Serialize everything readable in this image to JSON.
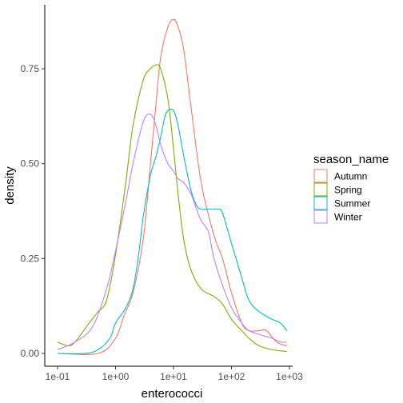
{
  "chart_data": {
    "type": "line",
    "xlabel": "enterococci",
    "ylabel": "density",
    "x_scale": "log10",
    "xlim": [
      0.1,
      1000
    ],
    "ylim": [
      -0.02,
      0.91
    ],
    "x_ticks": [
      {
        "value": 0.1,
        "label": "1e-01"
      },
      {
        "value": 1,
        "label": "1e+00"
      },
      {
        "value": 10,
        "label": "1e+01"
      },
      {
        "value": 100,
        "label": "1e+02"
      },
      {
        "value": 1000,
        "label": "1e+03"
      }
    ],
    "y_ticks": [
      {
        "value": 0.0,
        "label": "0.00"
      },
      {
        "value": 0.25,
        "label": "0.25"
      },
      {
        "value": 0.5,
        "label": "0.50"
      },
      {
        "value": 0.75,
        "label": "0.75"
      }
    ],
    "legend": {
      "title": "season_name",
      "position": "right"
    },
    "grid": false,
    "series": [
      {
        "name": "Autumn",
        "color": "#F8766D",
        "points": [
          [
            0.1,
            0.0
          ],
          [
            0.5,
            0.0
          ],
          [
            1,
            0.04
          ],
          [
            1.4,
            0.1
          ],
          [
            2,
            0.16
          ],
          [
            3,
            0.3
          ],
          [
            4,
            0.5
          ],
          [
            5,
            0.66
          ],
          [
            6,
            0.78
          ],
          [
            8,
            0.86
          ],
          [
            10,
            0.88
          ],
          [
            12,
            0.86
          ],
          [
            15,
            0.8
          ],
          [
            20,
            0.65
          ],
          [
            30,
            0.45
          ],
          [
            50,
            0.31
          ],
          [
            70,
            0.25
          ],
          [
            100,
            0.16
          ],
          [
            150,
            0.08
          ],
          [
            200,
            0.06
          ],
          [
            300,
            0.06
          ],
          [
            400,
            0.06
          ],
          [
            600,
            0.03
          ],
          [
            900,
            0.02
          ]
        ]
      },
      {
        "name": "Spring",
        "color": "#7CAE00",
        "points": [
          [
            0.1,
            0.03
          ],
          [
            0.15,
            0.02
          ],
          [
            0.2,
            0.03
          ],
          [
            0.35,
            0.08
          ],
          [
            0.5,
            0.11
          ],
          [
            0.7,
            0.14
          ],
          [
            1,
            0.26
          ],
          [
            1.5,
            0.45
          ],
          [
            2,
            0.6
          ],
          [
            3,
            0.72
          ],
          [
            4,
            0.75
          ],
          [
            5,
            0.76
          ],
          [
            6,
            0.75
          ],
          [
            8,
            0.67
          ],
          [
            10,
            0.54
          ],
          [
            12,
            0.42
          ],
          [
            15,
            0.3
          ],
          [
            20,
            0.22
          ],
          [
            30,
            0.17
          ],
          [
            50,
            0.15
          ],
          [
            70,
            0.13
          ],
          [
            100,
            0.09
          ],
          [
            150,
            0.06
          ],
          [
            200,
            0.04
          ],
          [
            300,
            0.02
          ],
          [
            500,
            0.01
          ],
          [
            900,
            0.005
          ]
        ]
      },
      {
        "name": "Summer",
        "color": "#00BFC4",
        "points": [
          [
            0.1,
            0.0
          ],
          [
            0.3,
            0.0
          ],
          [
            0.5,
            0.01
          ],
          [
            0.8,
            0.04
          ],
          [
            1,
            0.08
          ],
          [
            1.5,
            0.12
          ],
          [
            2,
            0.17
          ],
          [
            2.5,
            0.26
          ],
          [
            3,
            0.36
          ],
          [
            4,
            0.47
          ],
          [
            5,
            0.52
          ],
          [
            6,
            0.57
          ],
          [
            7,
            0.62
          ],
          [
            8,
            0.64
          ],
          [
            10,
            0.64
          ],
          [
            12,
            0.6
          ],
          [
            15,
            0.52
          ],
          [
            20,
            0.43
          ],
          [
            25,
            0.39
          ],
          [
            30,
            0.38
          ],
          [
            40,
            0.38
          ],
          [
            50,
            0.38
          ],
          [
            60,
            0.38
          ],
          [
            70,
            0.37
          ],
          [
            100,
            0.29
          ],
          [
            150,
            0.2
          ],
          [
            200,
            0.14
          ],
          [
            300,
            0.11
          ],
          [
            500,
            0.09
          ],
          [
            700,
            0.08
          ],
          [
            900,
            0.06
          ]
        ]
      },
      {
        "name": "Winter",
        "color": "#C77CFF",
        "points": [
          [
            0.1,
            0.01
          ],
          [
            0.2,
            0.03
          ],
          [
            0.4,
            0.07
          ],
          [
            0.7,
            0.17
          ],
          [
            1,
            0.27
          ],
          [
            1.5,
            0.4
          ],
          [
            2,
            0.5
          ],
          [
            3,
            0.61
          ],
          [
            4,
            0.63
          ],
          [
            5,
            0.6
          ],
          [
            6,
            0.55
          ],
          [
            8,
            0.5
          ],
          [
            10,
            0.48
          ],
          [
            12,
            0.46
          ],
          [
            15,
            0.45
          ],
          [
            20,
            0.42
          ],
          [
            25,
            0.38
          ],
          [
            30,
            0.35
          ],
          [
            40,
            0.32
          ],
          [
            50,
            0.25
          ],
          [
            70,
            0.18
          ],
          [
            100,
            0.12
          ],
          [
            150,
            0.08
          ],
          [
            200,
            0.06
          ],
          [
            300,
            0.05
          ],
          [
            500,
            0.04
          ],
          [
            700,
            0.03
          ],
          [
            900,
            0.03
          ]
        ]
      }
    ]
  }
}
